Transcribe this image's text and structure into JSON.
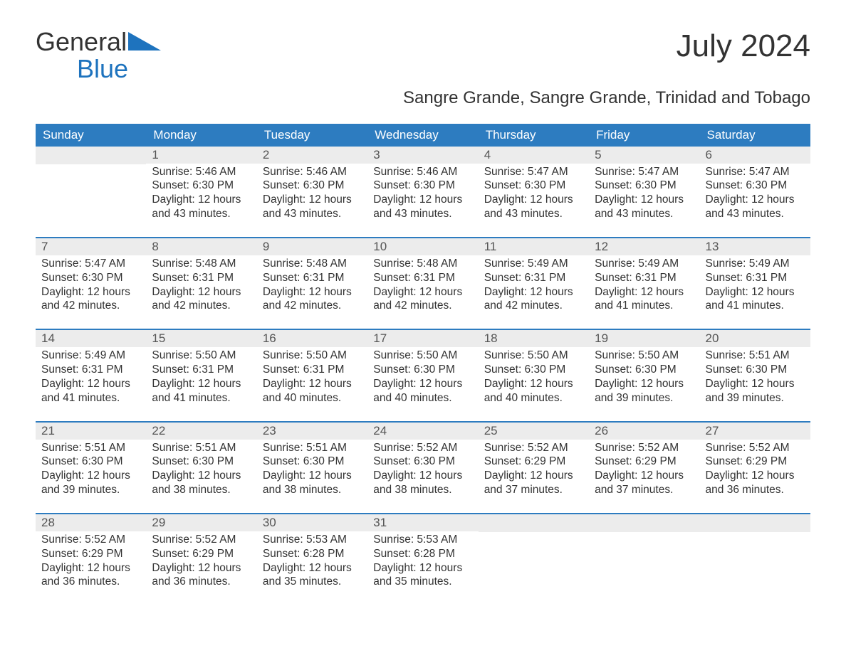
{
  "logo": {
    "line1": "General",
    "line2": "Blue"
  },
  "title": "July 2024",
  "subtitle": "Sangre Grande, Sangre Grande, Trinidad and Tobago",
  "colors": {
    "header_bg": "#2d7cc0",
    "header_text": "#ffffff",
    "daynum_bg": "#ececec",
    "week_border": "#2d7cc0",
    "logo_blue": "#1e73be",
    "text": "#333333",
    "background": "#ffffff"
  },
  "typography": {
    "title_fontsize": 44,
    "subtitle_fontsize": 24,
    "weekday_fontsize": 17,
    "daynum_fontsize": 17,
    "body_fontsize": 15.5,
    "logo_fontsize": 36
  },
  "weekdays": [
    "Sunday",
    "Monday",
    "Tuesday",
    "Wednesday",
    "Thursday",
    "Friday",
    "Saturday"
  ],
  "weeks": [
    [
      null,
      {
        "n": "1",
        "sunrise": "Sunrise: 5:46 AM",
        "sunset": "Sunset: 6:30 PM",
        "daylight": "Daylight: 12 hours and 43 minutes."
      },
      {
        "n": "2",
        "sunrise": "Sunrise: 5:46 AM",
        "sunset": "Sunset: 6:30 PM",
        "daylight": "Daylight: 12 hours and 43 minutes."
      },
      {
        "n": "3",
        "sunrise": "Sunrise: 5:46 AM",
        "sunset": "Sunset: 6:30 PM",
        "daylight": "Daylight: 12 hours and 43 minutes."
      },
      {
        "n": "4",
        "sunrise": "Sunrise: 5:47 AM",
        "sunset": "Sunset: 6:30 PM",
        "daylight": "Daylight: 12 hours and 43 minutes."
      },
      {
        "n": "5",
        "sunrise": "Sunrise: 5:47 AM",
        "sunset": "Sunset: 6:30 PM",
        "daylight": "Daylight: 12 hours and 43 minutes."
      },
      {
        "n": "6",
        "sunrise": "Sunrise: 5:47 AM",
        "sunset": "Sunset: 6:30 PM",
        "daylight": "Daylight: 12 hours and 43 minutes."
      }
    ],
    [
      {
        "n": "7",
        "sunrise": "Sunrise: 5:47 AM",
        "sunset": "Sunset: 6:30 PM",
        "daylight": "Daylight: 12 hours and 42 minutes."
      },
      {
        "n": "8",
        "sunrise": "Sunrise: 5:48 AM",
        "sunset": "Sunset: 6:31 PM",
        "daylight": "Daylight: 12 hours and 42 minutes."
      },
      {
        "n": "9",
        "sunrise": "Sunrise: 5:48 AM",
        "sunset": "Sunset: 6:31 PM",
        "daylight": "Daylight: 12 hours and 42 minutes."
      },
      {
        "n": "10",
        "sunrise": "Sunrise: 5:48 AM",
        "sunset": "Sunset: 6:31 PM",
        "daylight": "Daylight: 12 hours and 42 minutes."
      },
      {
        "n": "11",
        "sunrise": "Sunrise: 5:49 AM",
        "sunset": "Sunset: 6:31 PM",
        "daylight": "Daylight: 12 hours and 42 minutes."
      },
      {
        "n": "12",
        "sunrise": "Sunrise: 5:49 AM",
        "sunset": "Sunset: 6:31 PM",
        "daylight": "Daylight: 12 hours and 41 minutes."
      },
      {
        "n": "13",
        "sunrise": "Sunrise: 5:49 AM",
        "sunset": "Sunset: 6:31 PM",
        "daylight": "Daylight: 12 hours and 41 minutes."
      }
    ],
    [
      {
        "n": "14",
        "sunrise": "Sunrise: 5:49 AM",
        "sunset": "Sunset: 6:31 PM",
        "daylight": "Daylight: 12 hours and 41 minutes."
      },
      {
        "n": "15",
        "sunrise": "Sunrise: 5:50 AM",
        "sunset": "Sunset: 6:31 PM",
        "daylight": "Daylight: 12 hours and 41 minutes."
      },
      {
        "n": "16",
        "sunrise": "Sunrise: 5:50 AM",
        "sunset": "Sunset: 6:31 PM",
        "daylight": "Daylight: 12 hours and 40 minutes."
      },
      {
        "n": "17",
        "sunrise": "Sunrise: 5:50 AM",
        "sunset": "Sunset: 6:30 PM",
        "daylight": "Daylight: 12 hours and 40 minutes."
      },
      {
        "n": "18",
        "sunrise": "Sunrise: 5:50 AM",
        "sunset": "Sunset: 6:30 PM",
        "daylight": "Daylight: 12 hours and 40 minutes."
      },
      {
        "n": "19",
        "sunrise": "Sunrise: 5:50 AM",
        "sunset": "Sunset: 6:30 PM",
        "daylight": "Daylight: 12 hours and 39 minutes."
      },
      {
        "n": "20",
        "sunrise": "Sunrise: 5:51 AM",
        "sunset": "Sunset: 6:30 PM",
        "daylight": "Daylight: 12 hours and 39 minutes."
      }
    ],
    [
      {
        "n": "21",
        "sunrise": "Sunrise: 5:51 AM",
        "sunset": "Sunset: 6:30 PM",
        "daylight": "Daylight: 12 hours and 39 minutes."
      },
      {
        "n": "22",
        "sunrise": "Sunrise: 5:51 AM",
        "sunset": "Sunset: 6:30 PM",
        "daylight": "Daylight: 12 hours and 38 minutes."
      },
      {
        "n": "23",
        "sunrise": "Sunrise: 5:51 AM",
        "sunset": "Sunset: 6:30 PM",
        "daylight": "Daylight: 12 hours and 38 minutes."
      },
      {
        "n": "24",
        "sunrise": "Sunrise: 5:52 AM",
        "sunset": "Sunset: 6:30 PM",
        "daylight": "Daylight: 12 hours and 38 minutes."
      },
      {
        "n": "25",
        "sunrise": "Sunrise: 5:52 AM",
        "sunset": "Sunset: 6:29 PM",
        "daylight": "Daylight: 12 hours and 37 minutes."
      },
      {
        "n": "26",
        "sunrise": "Sunrise: 5:52 AM",
        "sunset": "Sunset: 6:29 PM",
        "daylight": "Daylight: 12 hours and 37 minutes."
      },
      {
        "n": "27",
        "sunrise": "Sunrise: 5:52 AM",
        "sunset": "Sunset: 6:29 PM",
        "daylight": "Daylight: 12 hours and 36 minutes."
      }
    ],
    [
      {
        "n": "28",
        "sunrise": "Sunrise: 5:52 AM",
        "sunset": "Sunset: 6:29 PM",
        "daylight": "Daylight: 12 hours and 36 minutes."
      },
      {
        "n": "29",
        "sunrise": "Sunrise: 5:52 AM",
        "sunset": "Sunset: 6:29 PM",
        "daylight": "Daylight: 12 hours and 36 minutes."
      },
      {
        "n": "30",
        "sunrise": "Sunrise: 5:53 AM",
        "sunset": "Sunset: 6:28 PM",
        "daylight": "Daylight: 12 hours and 35 minutes."
      },
      {
        "n": "31",
        "sunrise": "Sunrise: 5:53 AM",
        "sunset": "Sunset: 6:28 PM",
        "daylight": "Daylight: 12 hours and 35 minutes."
      },
      null,
      null,
      null
    ]
  ]
}
